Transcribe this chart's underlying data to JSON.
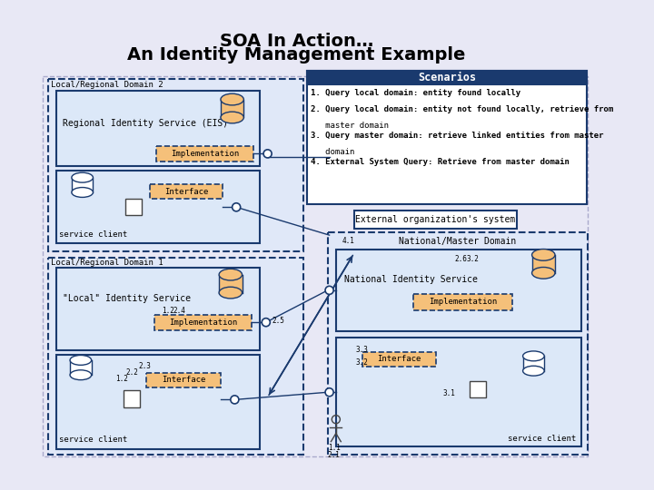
{
  "title_line1": "SOA In Action…",
  "title_line2": "An Identity Management Example",
  "bg_color": "#e8e8f5",
  "scenarios_title": "Scenarios",
  "scenario_lines": [
    "1. Query local domain: entity found locally",
    "2. Query local domain: entity not found locally, retrieve from",
    "   master domain",
    "3. Query master domain: retrieve linked entities from master",
    "   domain",
    "4. External System Query: Retrieve from master domain"
  ],
  "domain2_label": "Local/Regional Domain 2",
  "eis_label": "Regional Identity Service (EIS)",
  "impl_label": "Implementation",
  "interface_label": "Interface",
  "service_client_label": "service client",
  "domain1_label": "Local/Regional Domain 1",
  "local_is_label": "\"Local\" Identity Service",
  "ext_org_label": "External organization's system",
  "national_domain_label": "National/Master Domain",
  "national_is_label": "National Identity Service",
  "dark_blue": "#1a3a6e",
  "light_blue_fill": "#dce8f8",
  "domain_fill": "#e0e8f8",
  "orange_fill": "#f5c07a",
  "white": "#ffffff",
  "bg_outer": "#eaeaf5"
}
